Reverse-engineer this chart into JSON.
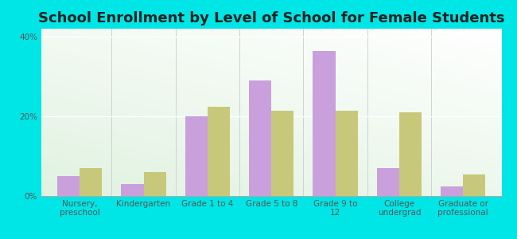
{
  "title": "School Enrollment by Level of School for Female Students",
  "categories": [
    "Nursery,\npreschool",
    "Kindergarten",
    "Grade 1 to 4",
    "Grade 5 to 8",
    "Grade 9 to\n12",
    "College\nundergrad",
    "Graduate or\nprofessional"
  ],
  "steptoe": [
    5.0,
    3.0,
    20.0,
    29.0,
    36.5,
    7.0,
    2.5
  ],
  "washington": [
    7.0,
    6.0,
    22.5,
    21.5,
    21.5,
    21.0,
    5.5
  ],
  "steptoe_color": "#c9a0dc",
  "washington_color": "#c8c87a",
  "ylim": [
    0,
    42
  ],
  "yticks": [
    0,
    20,
    40
  ],
  "ytick_labels": [
    "0%",
    "20%",
    "40%"
  ],
  "bar_width": 0.35,
  "outer_bg": "#00e5e5",
  "title_fontsize": 13,
  "tick_fontsize": 7.5,
  "legend_fontsize": 9
}
